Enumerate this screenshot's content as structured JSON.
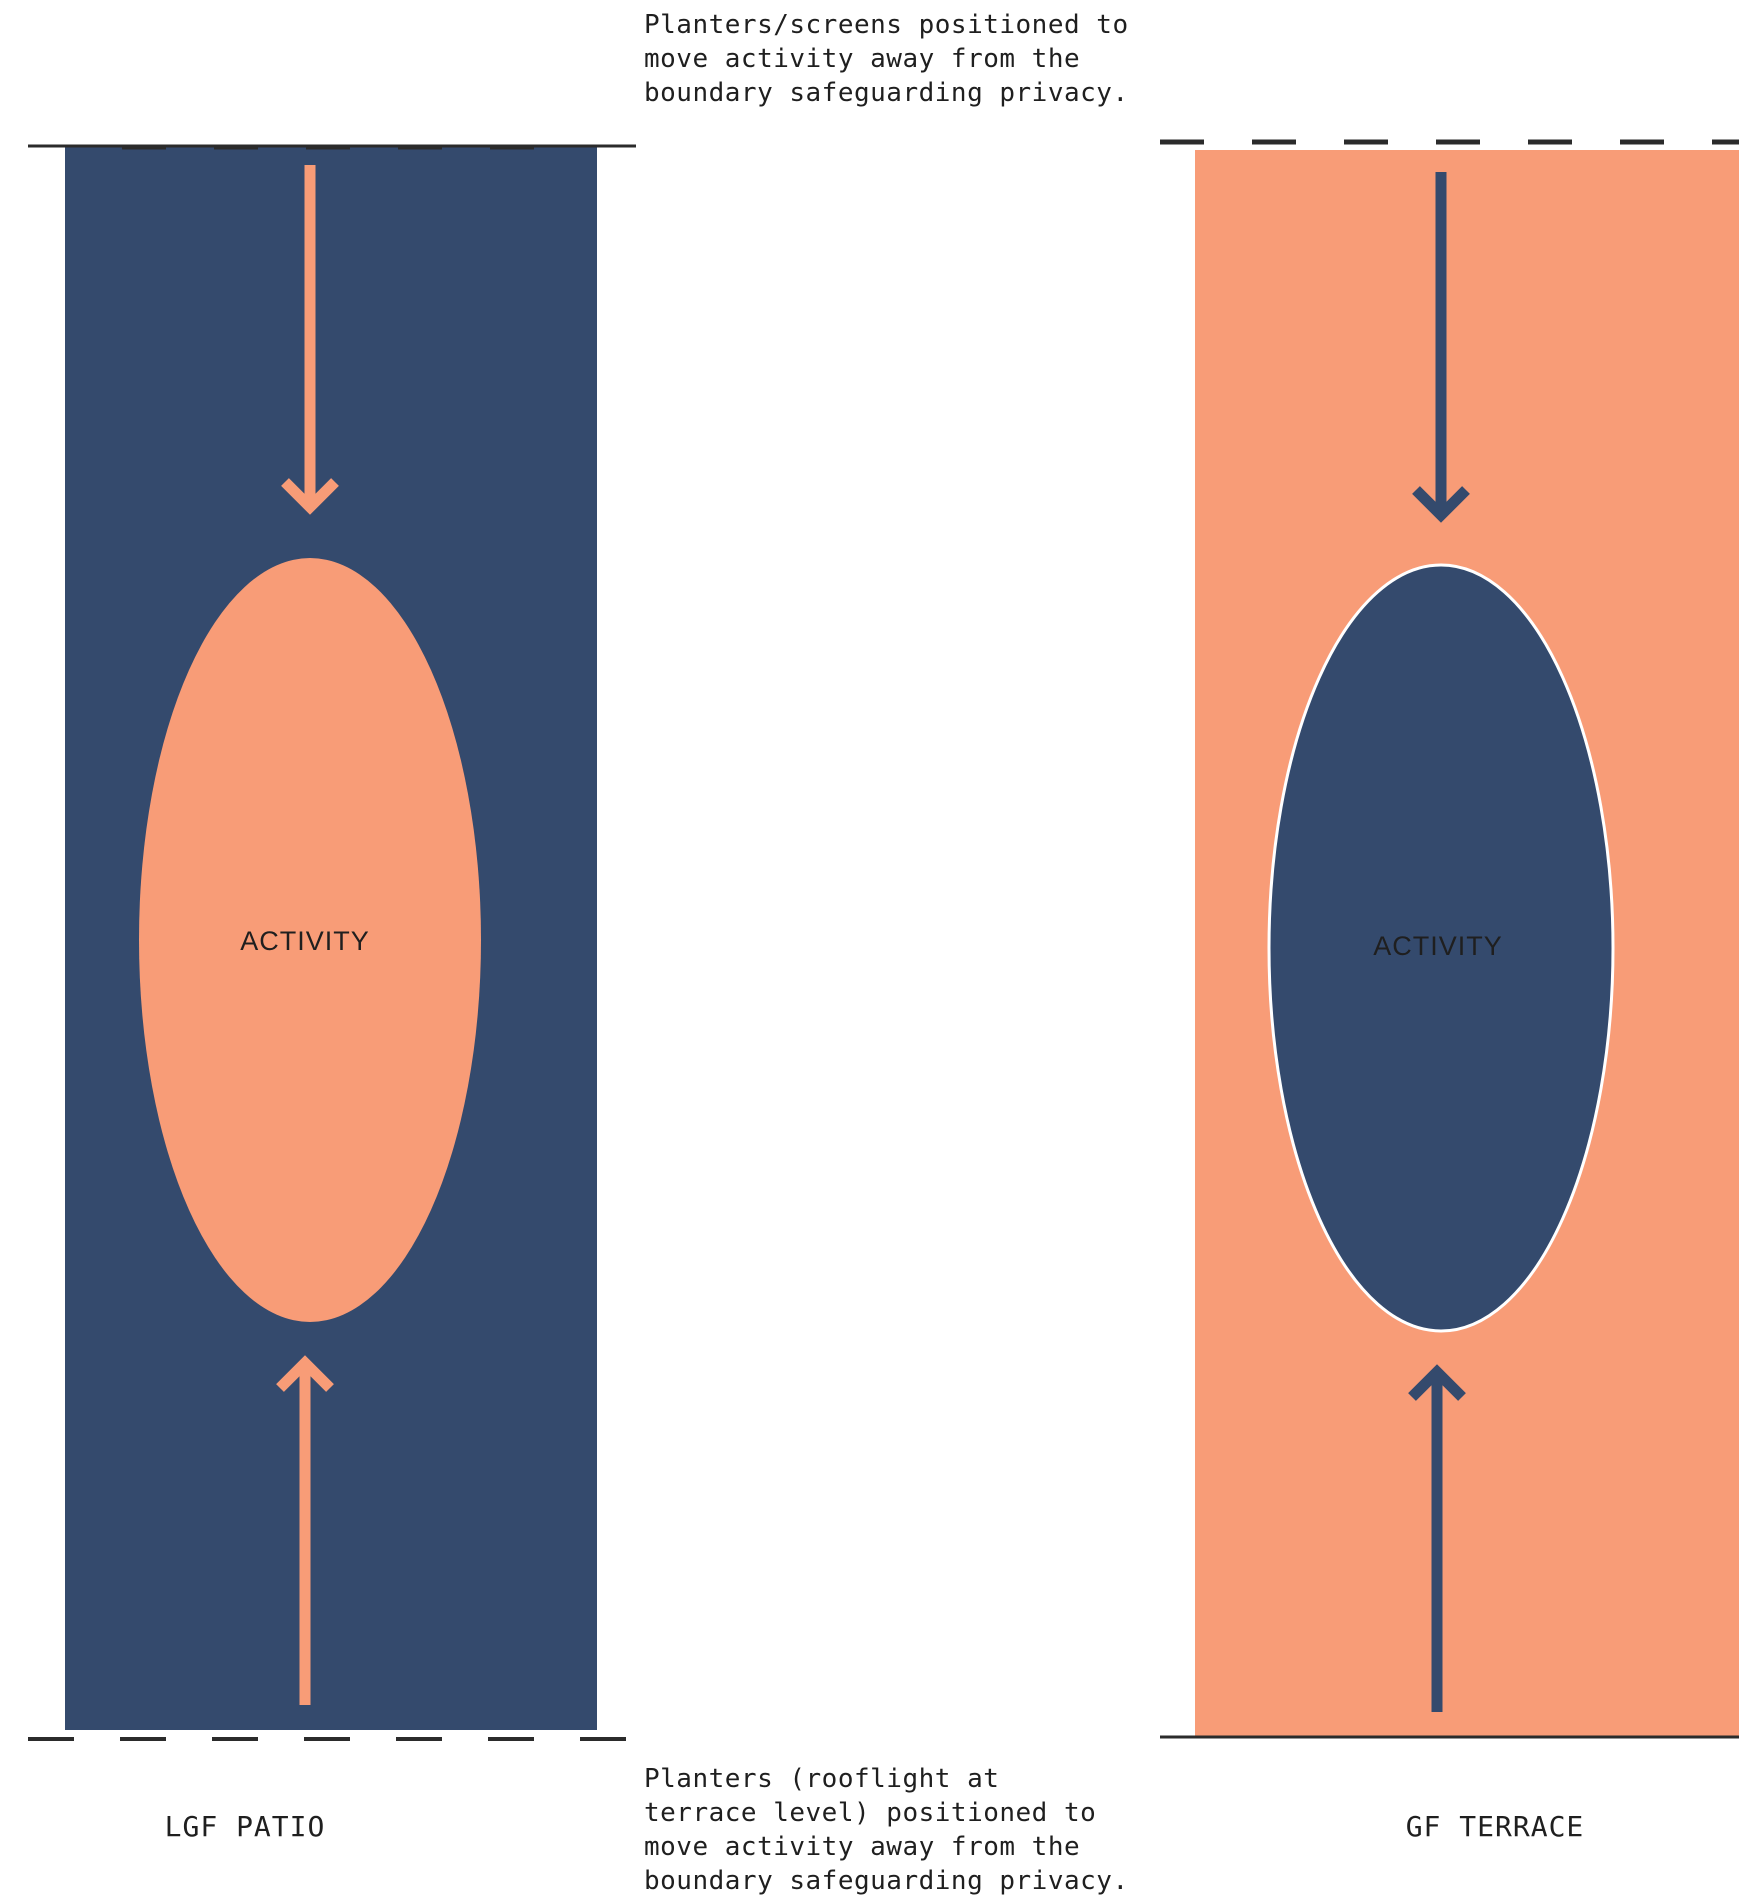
{
  "annotations": {
    "top_note": "Planters/screens positioned to\nmove activity away from the\nboundary safeguarding privacy.",
    "bottom_note": "Planters (rooflight at\nterrace level) positioned to\nmove activity away from the\nboundary safeguarding privacy."
  },
  "zones": {
    "left": {
      "label": "LGF PATIO",
      "activity_label": "ACTIVITY",
      "fill_color": "#344a6d",
      "ellipse_color": "#f89c77",
      "arrow_color": "#f89c77"
    },
    "right": {
      "label": "GF TERRACE",
      "activity_label": "ACTIVITY",
      "fill_color": "#f89c77",
      "ellipse_color": "#344a6d",
      "arrow_color": "#344a6d"
    }
  },
  "boundary_line_color": "#2b2b2b"
}
